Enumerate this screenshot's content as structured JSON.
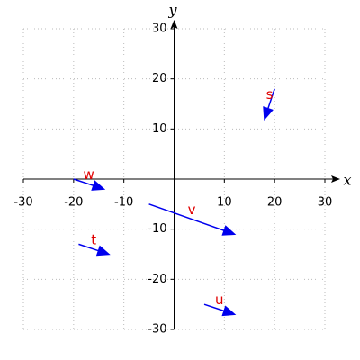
{
  "chart_data": {
    "type": "quiver",
    "x_label": "x",
    "y_label": "y",
    "xlim": [
      -30,
      30
    ],
    "ylim": [
      -30,
      30
    ],
    "xticks": [
      -30,
      -20,
      -10,
      10,
      20,
      30
    ],
    "yticks": [
      -30,
      -20,
      -10,
      10,
      20,
      30
    ],
    "grid": true,
    "color": "#0000ee",
    "label_color": "#e00000",
    "vectors": [
      {
        "label": "s",
        "start": [
          20,
          18
        ],
        "end": [
          18,
          12
        ]
      },
      {
        "label": "w",
        "start": [
          -20,
          0
        ],
        "end": [
          -14,
          -2
        ]
      },
      {
        "label": "v",
        "start": [
          -5,
          -5
        ],
        "end": [
          12,
          -11
        ]
      },
      {
        "label": "t",
        "start": [
          -19,
          -13
        ],
        "end": [
          -13,
          -15
        ]
      },
      {
        "label": "u",
        "start": [
          6,
          -25
        ],
        "end": [
          12,
          -27
        ]
      }
    ]
  }
}
